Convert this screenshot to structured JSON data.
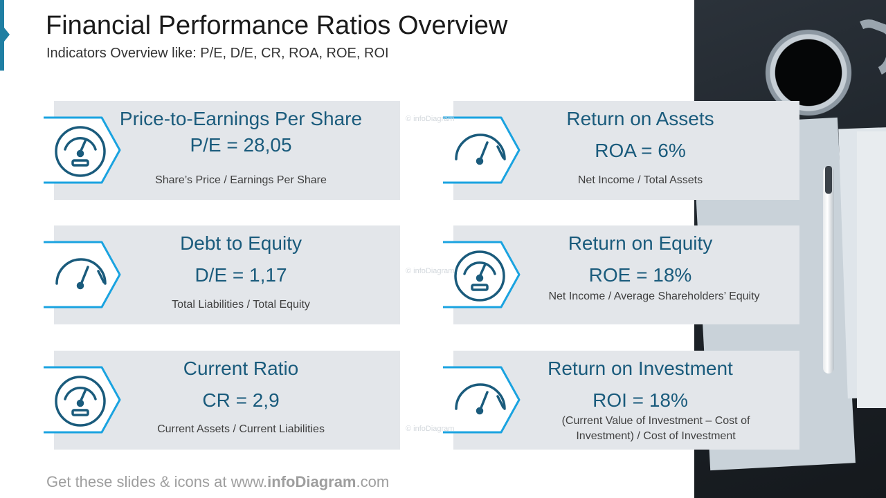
{
  "header": {
    "title": "Financial Performance Ratios Overview",
    "subtitle": "Indicators Overview like: P/E, D/E, CR, ROA, ROE, ROI"
  },
  "cards": [
    {
      "title": "Price-to-Earnings Per Share",
      "formula": "P/E = 28,05",
      "description": "Share’s Price / Earnings Per Share",
      "icon": "gauge-circle-icon"
    },
    {
      "title": "Return on Assets",
      "formula": "ROA = 6%",
      "description": "Net Income / Total Assets",
      "icon": "speedometer-icon"
    },
    {
      "title": "Debt to Equity",
      "formula": "D/E = 1,17",
      "description": "Total Liabilities / Total Equity",
      "icon": "speedometer-icon"
    },
    {
      "title": "Return on Equity",
      "formula": "ROE = 18%",
      "description": "Net Income / Average Shareholders’ Equity",
      "icon": "gauge-circle-icon"
    },
    {
      "title": "Current Ratio",
      "formula": "CR = 2,9",
      "description": "Current Assets / Current Liabilities",
      "icon": "gauge-circle-icon"
    },
    {
      "title": "Return on Investment",
      "formula": "ROI = 18%",
      "description": "(Current Value of Investment – Cost of Investment) / Cost of Investment",
      "icon": "speedometer-icon"
    }
  ],
  "watermark": "© infoDiagram",
  "footer": {
    "prefix": "Get these slides & icons at www.",
    "brand": "infoDiagram",
    "suffix": ".com"
  },
  "colors": {
    "accent": "#1f7fa3",
    "icon_outline": "#1aa3e0",
    "icon_stroke": "#1a5b7c",
    "card_bg": "#e3e6ea",
    "heading": "#1a5b7c"
  }
}
